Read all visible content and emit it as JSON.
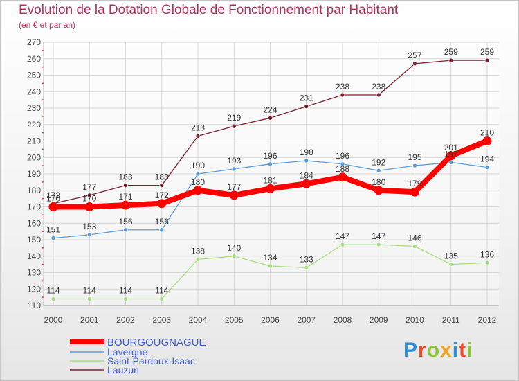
{
  "title": "Evolution de la Dotation Globale de Fonctionnement par Habitant",
  "subtitle": "(en € et par an)",
  "logo": {
    "text": "Proxiti",
    "letter_colors": [
      "#2f8fd8",
      "#e94a2a",
      "#8ac43b",
      "#f2a51a",
      "#2f8fd8",
      "#e94a2a",
      "#8ac43b"
    ]
  },
  "chart_data": {
    "type": "line",
    "title": "Evolution de la Dotation Globale de Fonctionnement par Habitant",
    "subtitle": "(en € et par an)",
    "x": [
      "2000",
      "2001",
      "2002",
      "2003",
      "2004",
      "2005",
      "2006",
      "2007",
      "2008",
      "2009",
      "2010",
      "2011",
      "2012"
    ],
    "ylim": [
      110,
      270
    ],
    "yticks": [
      110,
      120,
      130,
      140,
      150,
      160,
      170,
      180,
      190,
      200,
      210,
      220,
      230,
      240,
      250,
      260,
      270
    ],
    "grid": true,
    "legend_position": "bottom-left",
    "series": [
      {
        "name": "BOURGOUGNAGUE",
        "color": "#ff0000",
        "emphasis": true,
        "values": [
          170,
          170,
          171,
          172,
          180,
          177,
          181,
          184,
          188,
          180,
          179,
          201,
          210
        ]
      },
      {
        "name": "Lavergne",
        "color": "#5b9bd5",
        "values": [
          151,
          153,
          156,
          156,
          190,
          193,
          196,
          198,
          196,
          192,
          195,
          197,
          194
        ]
      },
      {
        "name": "Saint-Pardoux-Isaac",
        "color": "#a6e07a",
        "values": [
          114,
          114,
          114,
          114,
          138,
          140,
          134,
          133,
          147,
          147,
          146,
          135,
          136
        ]
      },
      {
        "name": "Lauzun",
        "color": "#7a1f2b",
        "values": [
          172,
          177,
          183,
          183,
          213,
          219,
          224,
          231,
          238,
          238,
          257,
          259,
          259
        ]
      }
    ]
  }
}
